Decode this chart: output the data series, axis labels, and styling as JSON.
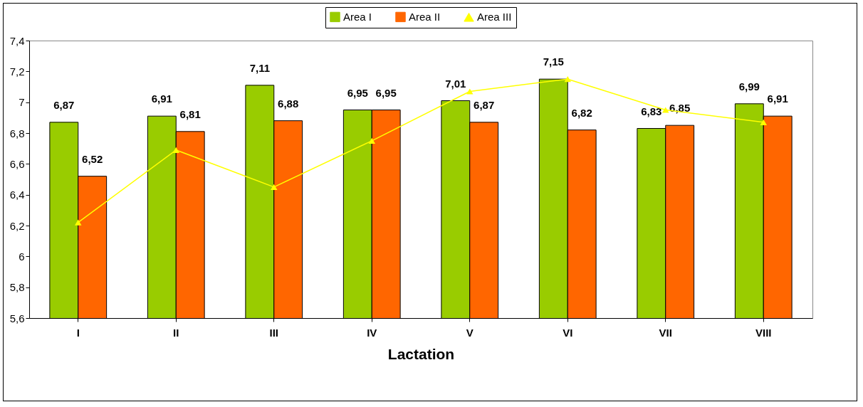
{
  "chart_data": {
    "type": "bar",
    "xlabel": "Lactation",
    "legend": "top",
    "categories": [
      "I",
      "II",
      "III",
      "IV",
      "V",
      "VI",
      "VII",
      "VIII"
    ],
    "ylim": [
      5.6,
      7.4
    ],
    "yticks": [
      {
        "value": 5.6,
        "label": "5,6"
      },
      {
        "value": 5.8,
        "label": "5,8"
      },
      6,
      {
        "value": 6.2,
        "label": "6,2"
      },
      {
        "value": 6.4,
        "label": "6,4"
      },
      {
        "value": 6.6,
        "label": "6,6"
      },
      {
        "value": 6.8,
        "label": "6,8"
      },
      7,
      {
        "value": 7.2,
        "label": "7,2"
      },
      {
        "value": 7.4,
        "label": "7,4"
      }
    ],
    "series": [
      {
        "name": "Area I",
        "color": "#99cc00",
        "values": [
          6.87,
          6.91,
          7.11,
          6.95,
          7.01,
          7.15,
          6.83,
          6.99
        ],
        "value_labels": [
          "6,87",
          "6,91",
          "7,11",
          "6,95",
          "7,01",
          "7,15",
          "6,83",
          "6,99"
        ]
      },
      {
        "name": "Area II",
        "color": "#ff6600",
        "values": [
          6.52,
          6.81,
          6.88,
          6.95,
          6.87,
          6.82,
          6.85,
          6.91
        ],
        "value_labels": [
          "6,52",
          "6,81",
          "6,88",
          "6,95",
          "6,87",
          "6,82",
          "6,85",
          "6,91"
        ]
      },
      {
        "name": "Area III",
        "type": "line",
        "marker": "triangle",
        "color": "#ffff00",
        "values": [
          6.22,
          6.69,
          6.45,
          6.75,
          7.07,
          7.15,
          6.95,
          6.87
        ]
      }
    ]
  }
}
